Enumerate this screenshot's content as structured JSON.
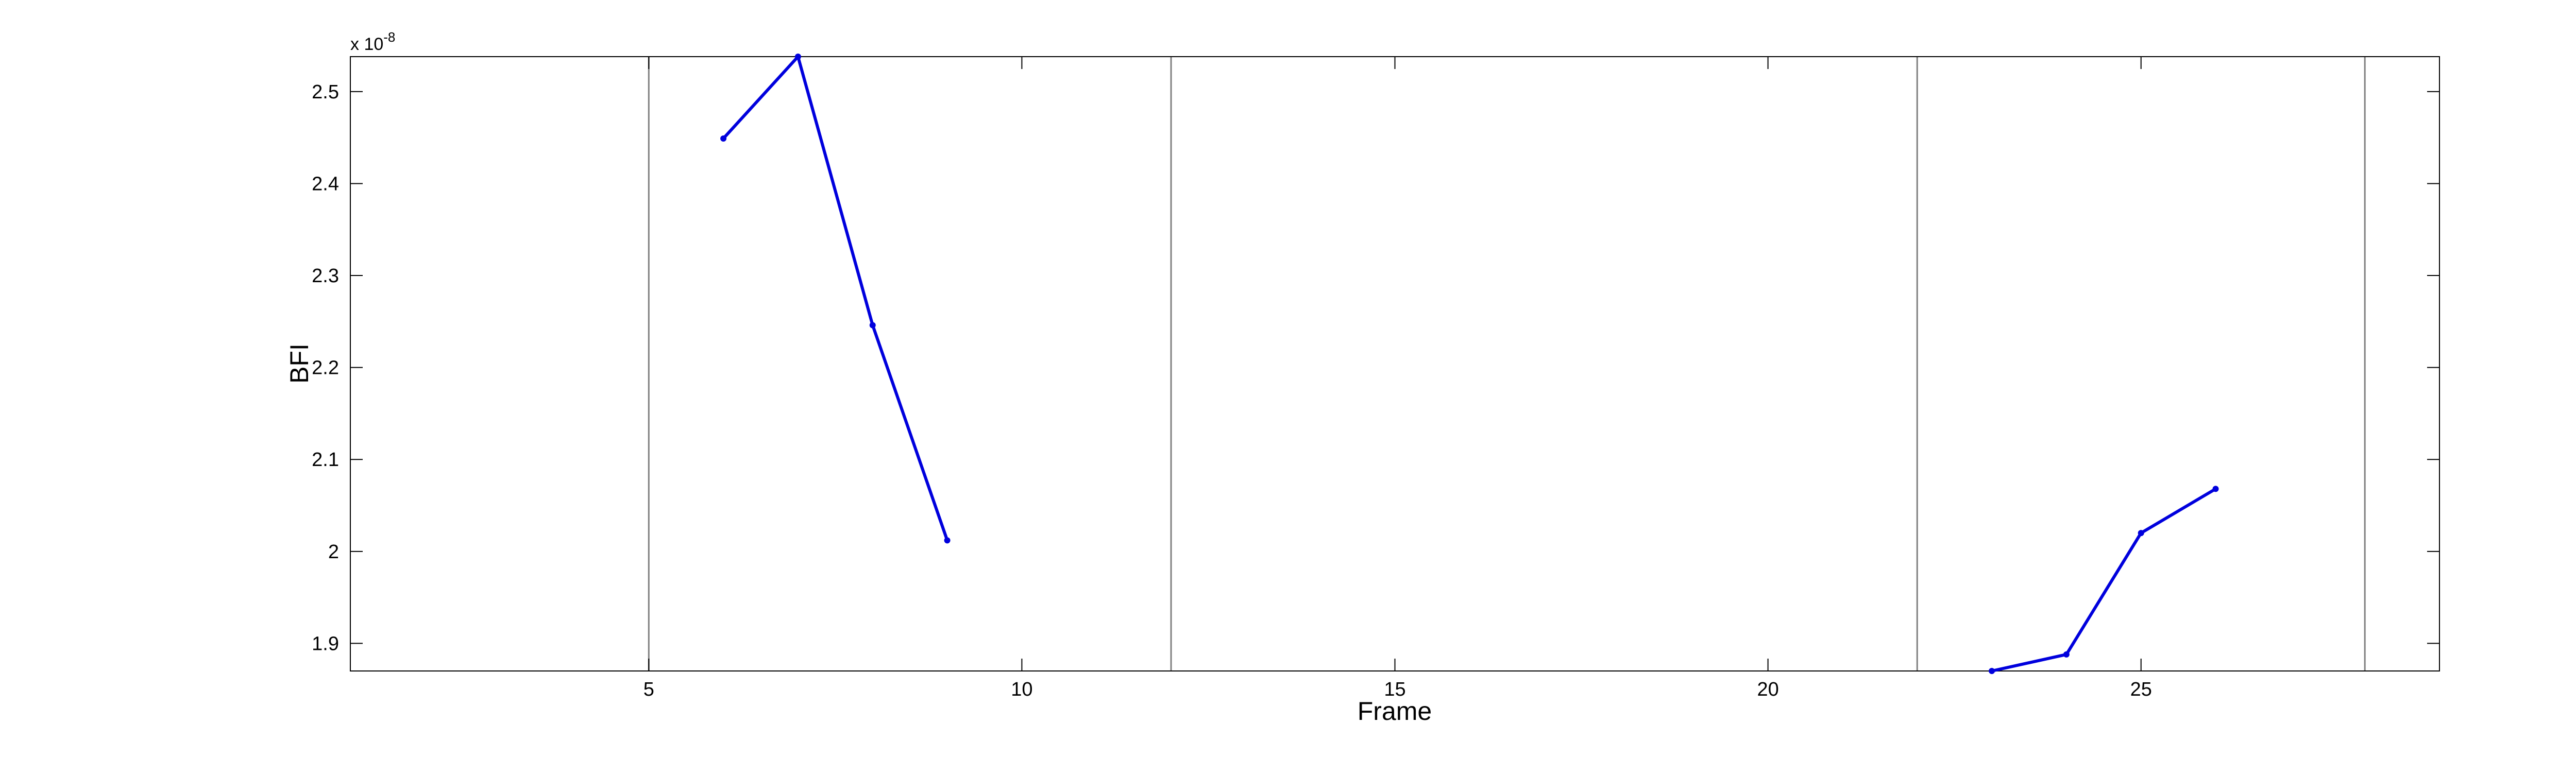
{
  "chart_data": {
    "type": "line",
    "title": "",
    "xlabel": "Frame",
    "ylabel": "BFI",
    "xlim": [
      1,
      29
    ],
    "ylim": [
      1.87,
      2.538
    ],
    "y_exponent_prefix": "x 10",
    "y_exponent_power": "-8",
    "grid": false,
    "x_ticks": [
      5,
      10,
      15,
      20,
      25
    ],
    "x_tick_labels": [
      "5",
      "10",
      "15",
      "20",
      "25"
    ],
    "y_ticks": [
      1.9,
      2.0,
      2.1,
      2.2,
      2.3,
      2.4,
      2.5
    ],
    "y_tick_labels": [
      "1.9",
      "2",
      "2.1",
      "2.2",
      "2.3",
      "2.4",
      "2.5"
    ],
    "vertical_lines": [
      5,
      12,
      22,
      28
    ],
    "series": [
      {
        "color": "#0000dd",
        "segments": [
          {
            "x": [
              6,
              7,
              8,
              9
            ],
            "y": [
              2.449,
              2.538,
              2.246,
              2.012
            ]
          },
          {
            "x": [
              23,
              24,
              25,
              26
            ],
            "y": [
              1.87,
              1.888,
              2.02,
              2.068
            ]
          }
        ]
      }
    ]
  }
}
